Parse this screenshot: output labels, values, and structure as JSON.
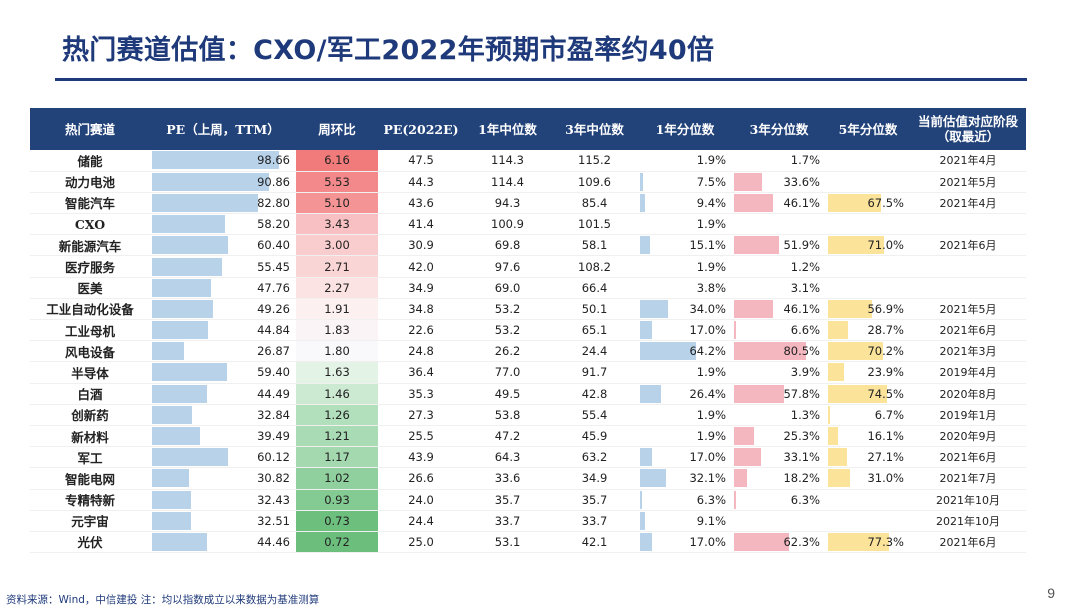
{
  "title": "热门赛道估值：CXO/军工2022年预期市盈率约40倍",
  "page_number": "9",
  "footer": "资料来源：Wind，中信建投 注：均以指数成立以来数据为基准测算",
  "colors": {
    "header_bg": "#22427a",
    "pe_bar": "#b8d2ea",
    "pct1_bar": "#b8d2ea",
    "pct3_bar": "#f4b6bf",
    "pct5_bar": "#fbe39a"
  },
  "table": {
    "headers": [
      "热门赛道",
      "PE（上周，TTM）",
      "周环比",
      "PE(2022E)",
      "1年中位数",
      "3年中位数",
      "1年分位数",
      "3年分位数",
      "5年分位数",
      "当前估值对应阶段\n（取最近）"
    ],
    "rows": [
      {
        "name": "储能",
        "pe": "98.66",
        "wow": "6.16",
        "pe2022": "47.5",
        "med1": "114.3",
        "med3": "115.2",
        "p1": "1.9%",
        "p3": "1.7%",
        "p5": "",
        "stage": "2021年4月",
        "heat": "#f17a7a"
      },
      {
        "name": "动力电池",
        "pe": "90.86",
        "wow": "5.53",
        "pe2022": "44.3",
        "med1": "114.4",
        "med3": "109.6",
        "p1": "7.5%",
        "p3": "33.6%",
        "p5": "",
        "stage": "2021年5月",
        "heat": "#f3898a"
      },
      {
        "name": "智能汽车",
        "pe": "82.80",
        "wow": "5.10",
        "pe2022": "43.6",
        "med1": "94.3",
        "med3": "85.4",
        "p1": "9.4%",
        "p3": "46.1%",
        "p5": "67.5%",
        "stage": "2021年4月",
        "heat": "#f49495"
      },
      {
        "name": "CXO",
        "pe": "58.20",
        "wow": "3.43",
        "pe2022": "41.4",
        "med1": "100.9",
        "med3": "101.5",
        "p1": "1.9%",
        "p3": "",
        "p5": "",
        "stage": "",
        "heat": "#f8c0c2"
      },
      {
        "name": "新能源汽车",
        "pe": "60.40",
        "wow": "3.00",
        "pe2022": "30.9",
        "med1": "69.8",
        "med3": "58.1",
        "p1": "15.1%",
        "p3": "51.9%",
        "p5": "71.0%",
        "stage": "2021年6月",
        "heat": "#f9cccd"
      },
      {
        "name": "医疗服务",
        "pe": "55.45",
        "wow": "2.71",
        "pe2022": "42.0",
        "med1": "97.6",
        "med3": "108.2",
        "p1": "1.9%",
        "p3": "1.2%",
        "p5": "",
        "stage": "",
        "heat": "#fad5d6"
      },
      {
        "name": "医美",
        "pe": "47.76",
        "wow": "2.27",
        "pe2022": "34.9",
        "med1": "69.0",
        "med3": "66.4",
        "p1": "3.8%",
        "p3": "3.1%",
        "p5": "",
        "stage": "",
        "heat": "#fbe2e3"
      },
      {
        "name": "工业自动化设备",
        "pe": "49.26",
        "wow": "1.91",
        "pe2022": "34.8",
        "med1": "53.2",
        "med3": "50.1",
        "p1": "34.0%",
        "p3": "46.1%",
        "p5": "56.9%",
        "stage": "2021年5月",
        "heat": "#fcf0f1"
      },
      {
        "name": "工业母机",
        "pe": "44.84",
        "wow": "1.83",
        "pe2022": "22.6",
        "med1": "53.2",
        "med3": "65.1",
        "p1": "17.0%",
        "p3": "6.6%",
        "p5": "28.7%",
        "stage": "2021年6月",
        "heat": "#fbf4f6"
      },
      {
        "name": "风电设备",
        "pe": "26.87",
        "wow": "1.80",
        "pe2022": "24.8",
        "med1": "26.2",
        "med3": "24.4",
        "p1": "64.2%",
        "p3": "80.5%",
        "p5": "70.2%",
        "stage": "2021年3月",
        "heat": "#f9f8fb"
      },
      {
        "name": "半导体",
        "pe": "59.40",
        "wow": "1.63",
        "pe2022": "36.4",
        "med1": "77.0",
        "med3": "91.7",
        "p1": "1.9%",
        "p3": "3.9%",
        "p5": "23.9%",
        "stage": "2019年4月",
        "heat": "#e3f3e6"
      },
      {
        "name": "白酒",
        "pe": "44.49",
        "wow": "1.46",
        "pe2022": "35.3",
        "med1": "49.5",
        "med3": "42.8",
        "p1": "26.4%",
        "p3": "57.8%",
        "p5": "74.5%",
        "stage": "2020年8月",
        "heat": "#cce9d2"
      },
      {
        "name": "创新药",
        "pe": "32.84",
        "wow": "1.26",
        "pe2022": "27.3",
        "med1": "53.8",
        "med3": "55.4",
        "p1": "1.9%",
        "p3": "1.3%",
        "p5": "6.7%",
        "stage": "2019年1月",
        "heat": "#b2dfbc"
      },
      {
        "name": "新材料",
        "pe": "39.49",
        "wow": "1.21",
        "pe2022": "25.5",
        "med1": "47.2",
        "med3": "45.9",
        "p1": "1.9%",
        "p3": "25.3%",
        "p5": "16.1%",
        "stage": "2020年9月",
        "heat": "#a9dbb4"
      },
      {
        "name": "军工",
        "pe": "60.12",
        "wow": "1.17",
        "pe2022": "43.9",
        "med1": "64.3",
        "med3": "63.2",
        "p1": "17.0%",
        "p3": "33.1%",
        "p5": "27.1%",
        "stage": "2021年6月",
        "heat": "#a4d9b0"
      },
      {
        "name": "智能电网",
        "pe": "30.82",
        "wow": "1.02",
        "pe2022": "26.6",
        "med1": "33.6",
        "med3": "34.9",
        "p1": "32.1%",
        "p3": "18.2%",
        "p5": "31.0%",
        "stage": "2021年7月",
        "heat": "#90d09e"
      },
      {
        "name": "专精特新",
        "pe": "32.43",
        "wow": "0.93",
        "pe2022": "24.0",
        "med1": "35.7",
        "med3": "35.7",
        "p1": "6.3%",
        "p3": "6.3%",
        "p5": "",
        "stage": "2021年10月",
        "heat": "#84ca93"
      },
      {
        "name": "元宇宙",
        "pe": "32.51",
        "wow": "0.73",
        "pe2022": "24.4",
        "med1": "33.7",
        "med3": "33.7",
        "p1": "9.1%",
        "p3": "",
        "p5": "",
        "stage": "2021年10月",
        "heat": "#6dbf7e"
      },
      {
        "name": "光伏",
        "pe": "44.46",
        "wow": "0.72",
        "pe2022": "25.0",
        "med1": "53.1",
        "med3": "42.1",
        "p1": "17.0%",
        "p3": "62.3%",
        "p5": "77.3%",
        "stage": "2021年6月",
        "heat": "#6bbe7c"
      }
    ]
  }
}
